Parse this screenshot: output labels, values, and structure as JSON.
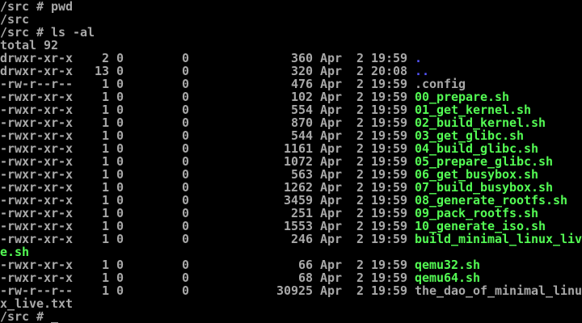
{
  "palette": {
    "background": "#000000",
    "foreground": "#a8a8a8",
    "directory": "#5454fc",
    "executable": "#54fc54"
  },
  "terminal": {
    "columns": 80,
    "rows": 25,
    "prompt": "/src # ",
    "cursor": "_"
  },
  "session": [
    {
      "type": "command",
      "command": "pwd"
    },
    {
      "type": "output",
      "text": "/src"
    },
    {
      "type": "command",
      "command": "ls -al"
    },
    {
      "type": "output",
      "text": "total 92"
    },
    {
      "type": "listing"
    },
    {
      "type": "prompt"
    }
  ],
  "listing": {
    "rows": [
      {
        "permissions": "drwxr-xr-x",
        "links": 2,
        "owner": "0",
        "group": "0",
        "size": 360,
        "date": "Apr  2 19:59",
        "name": ".",
        "kind": "directory"
      },
      {
        "permissions": "drwxr-xr-x",
        "links": 13,
        "owner": "0",
        "group": "0",
        "size": 320,
        "date": "Apr  2 20:08",
        "name": "..",
        "kind": "directory"
      },
      {
        "permissions": "-rw-r--r--",
        "links": 1,
        "owner": "0",
        "group": "0",
        "size": 476,
        "date": "Apr  2 19:59",
        "name": ".config",
        "kind": "file"
      },
      {
        "permissions": "-rwxr-xr-x",
        "links": 1,
        "owner": "0",
        "group": "0",
        "size": 102,
        "date": "Apr  2 19:59",
        "name": "00_prepare.sh",
        "kind": "executable"
      },
      {
        "permissions": "-rwxr-xr-x",
        "links": 1,
        "owner": "0",
        "group": "0",
        "size": 554,
        "date": "Apr  2 19:59",
        "name": "01_get_kernel.sh",
        "kind": "executable"
      },
      {
        "permissions": "-rwxr-xr-x",
        "links": 1,
        "owner": "0",
        "group": "0",
        "size": 870,
        "date": "Apr  2 19:59",
        "name": "02_build_kernel.sh",
        "kind": "executable"
      },
      {
        "permissions": "-rwxr-xr-x",
        "links": 1,
        "owner": "0",
        "group": "0",
        "size": 544,
        "date": "Apr  2 19:59",
        "name": "03_get_glibc.sh",
        "kind": "executable"
      },
      {
        "permissions": "-rwxr-xr-x",
        "links": 1,
        "owner": "0",
        "group": "0",
        "size": 1161,
        "date": "Apr  2 19:59",
        "name": "04_build_glibc.sh",
        "kind": "executable"
      },
      {
        "permissions": "-rwxr-xr-x",
        "links": 1,
        "owner": "0",
        "group": "0",
        "size": 1072,
        "date": "Apr  2 19:59",
        "name": "05_prepare_glibc.sh",
        "kind": "executable"
      },
      {
        "permissions": "-rwxr-xr-x",
        "links": 1,
        "owner": "0",
        "group": "0",
        "size": 563,
        "date": "Apr  2 19:59",
        "name": "06_get_busybox.sh",
        "kind": "executable"
      },
      {
        "permissions": "-rwxr-xr-x",
        "links": 1,
        "owner": "0",
        "group": "0",
        "size": 1262,
        "date": "Apr  2 19:59",
        "name": "07_build_busybox.sh",
        "kind": "executable"
      },
      {
        "permissions": "-rwxr-xr-x",
        "links": 1,
        "owner": "0",
        "group": "0",
        "size": 3459,
        "date": "Apr  2 19:59",
        "name": "08_generate_rootfs.sh",
        "kind": "executable"
      },
      {
        "permissions": "-rwxr-xr-x",
        "links": 1,
        "owner": "0",
        "group": "0",
        "size": 251,
        "date": "Apr  2 19:59",
        "name": "09_pack_rootfs.sh",
        "kind": "executable"
      },
      {
        "permissions": "-rwxr-xr-x",
        "links": 1,
        "owner": "0",
        "group": "0",
        "size": 1553,
        "date": "Apr  2 19:59",
        "name": "10_generate_iso.sh",
        "kind": "executable"
      },
      {
        "permissions": "-rwxr-xr-x",
        "links": 1,
        "owner": "0",
        "group": "0",
        "size": 246,
        "date": "Apr  2 19:59",
        "name": "build_minimal_linux_live.sh",
        "kind": "executable"
      },
      {
        "permissions": "-rwxr-xr-x",
        "links": 1,
        "owner": "0",
        "group": "0",
        "size": 66,
        "date": "Apr  2 19:59",
        "name": "qemu32.sh",
        "kind": "executable"
      },
      {
        "permissions": "-rwxr-xr-x",
        "links": 1,
        "owner": "0",
        "group": "0",
        "size": 68,
        "date": "Apr  2 19:59",
        "name": "qemu64.sh",
        "kind": "executable"
      },
      {
        "permissions": "-rw-r--r--",
        "links": 1,
        "owner": "0",
        "group": "0",
        "size": 30925,
        "date": "Apr  2 19:59",
        "name": "the_dao_of_minimal_linux_live.txt",
        "kind": "file"
      }
    ]
  }
}
